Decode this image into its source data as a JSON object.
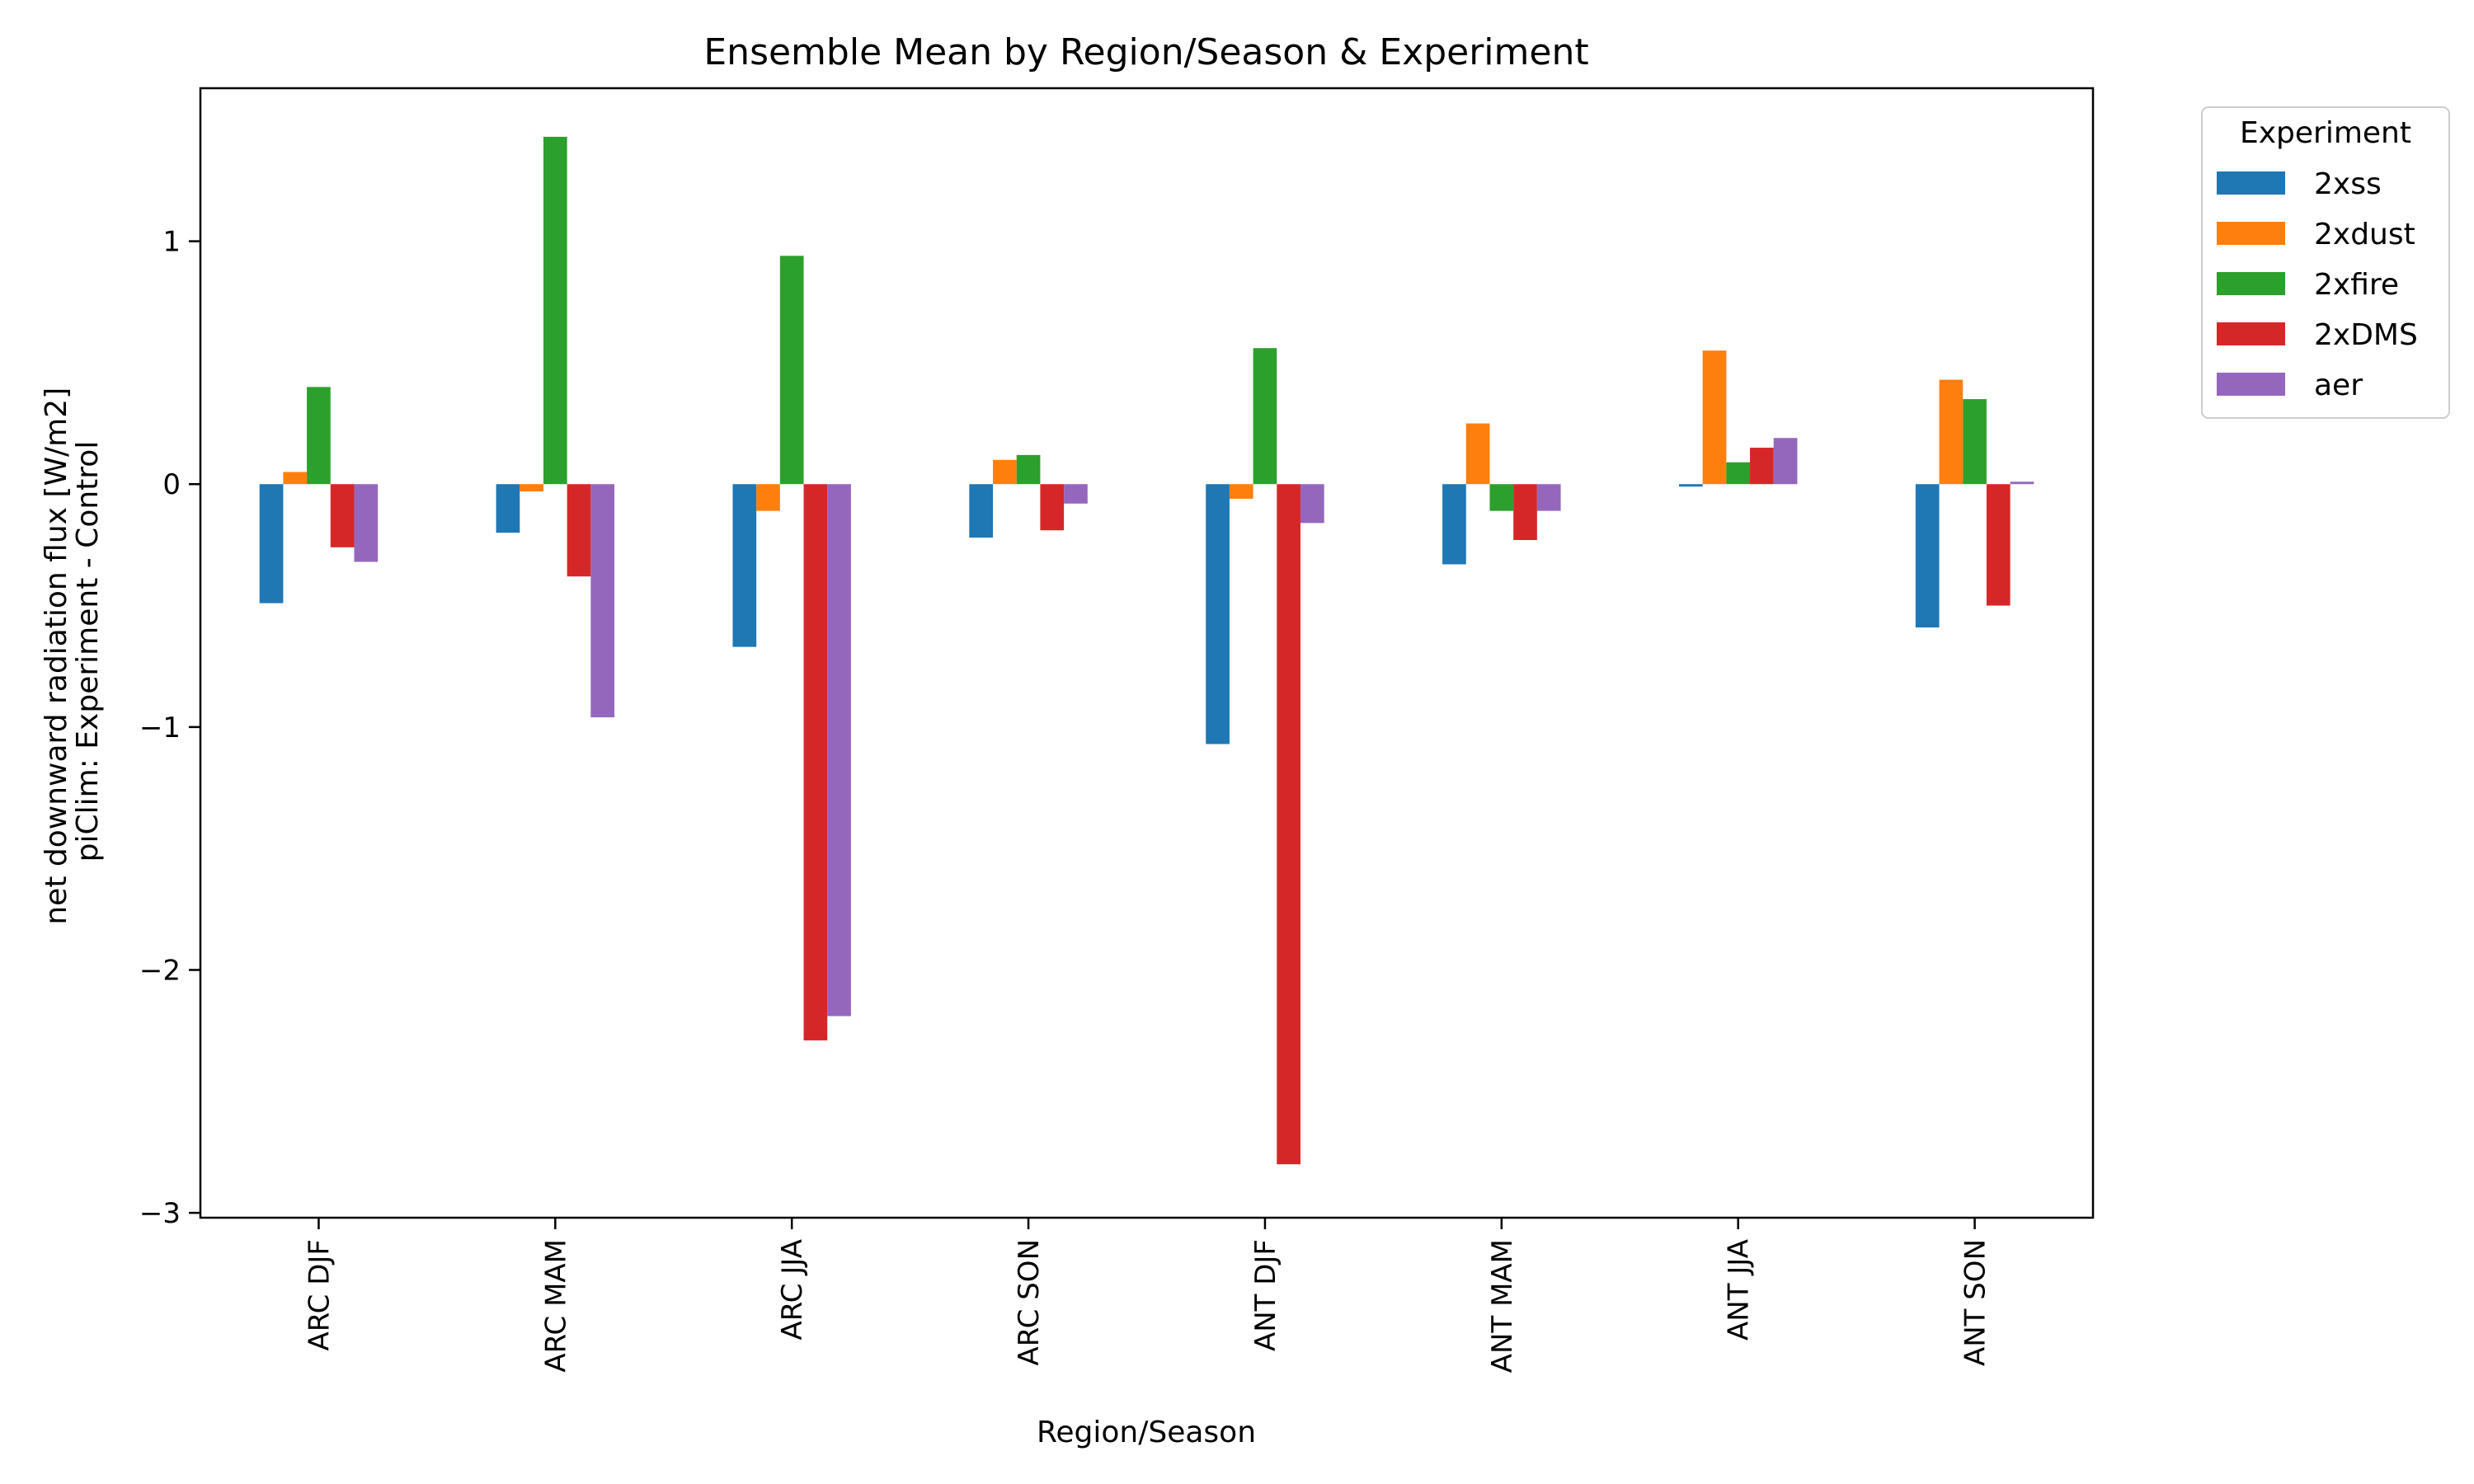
{
  "chart_data": {
    "type": "bar",
    "title": "Ensemble Mean by Region/Season & Experiment",
    "xlabel": "Region/Season",
    "ylabel": [
      "net downward radiation flux [W/m2]",
      "piClim: Experiment - Control"
    ],
    "categories": [
      "ARC DJF",
      "ARC MAM",
      "ARC JJA",
      "ARC SON",
      "ANT DJF",
      "ANT MAM",
      "ANT JJA",
      "ANT SON"
    ],
    "ylim": [
      -3.02,
      1.63
    ],
    "yticks": [
      1,
      0,
      -1,
      -2,
      -3
    ],
    "ytick_labels": [
      "1",
      "0",
      "−1",
      "−2",
      "−3"
    ],
    "grid": false,
    "legend": {
      "title": "Experiment",
      "placement": "outside-top-right"
    },
    "series": [
      {
        "name": "2xss",
        "color": "#1f77b4",
        "values": [
          -0.49,
          -0.2,
          -0.67,
          -0.22,
          -1.07,
          -0.33,
          -0.01,
          -0.59
        ]
      },
      {
        "name": "2xdust",
        "color": "#ff7f0e",
        "values": [
          0.05,
          -0.03,
          -0.11,
          0.1,
          -0.06,
          0.25,
          0.55,
          0.43
        ]
      },
      {
        "name": "2xfire",
        "color": "#2ca02c",
        "values": [
          0.4,
          1.43,
          0.94,
          0.12,
          0.56,
          -0.11,
          0.09,
          0.35
        ]
      },
      {
        "name": "2xDMS",
        "color": "#d62728",
        "values": [
          -0.26,
          -0.38,
          -2.29,
          -0.19,
          -2.8,
          -0.23,
          0.15,
          -0.5
        ]
      },
      {
        "name": "aer",
        "color": "#9467bd",
        "values": [
          -0.32,
          -0.96,
          -2.19,
          -0.08,
          -0.16,
          -0.11,
          0.19,
          0.01
        ]
      }
    ]
  }
}
